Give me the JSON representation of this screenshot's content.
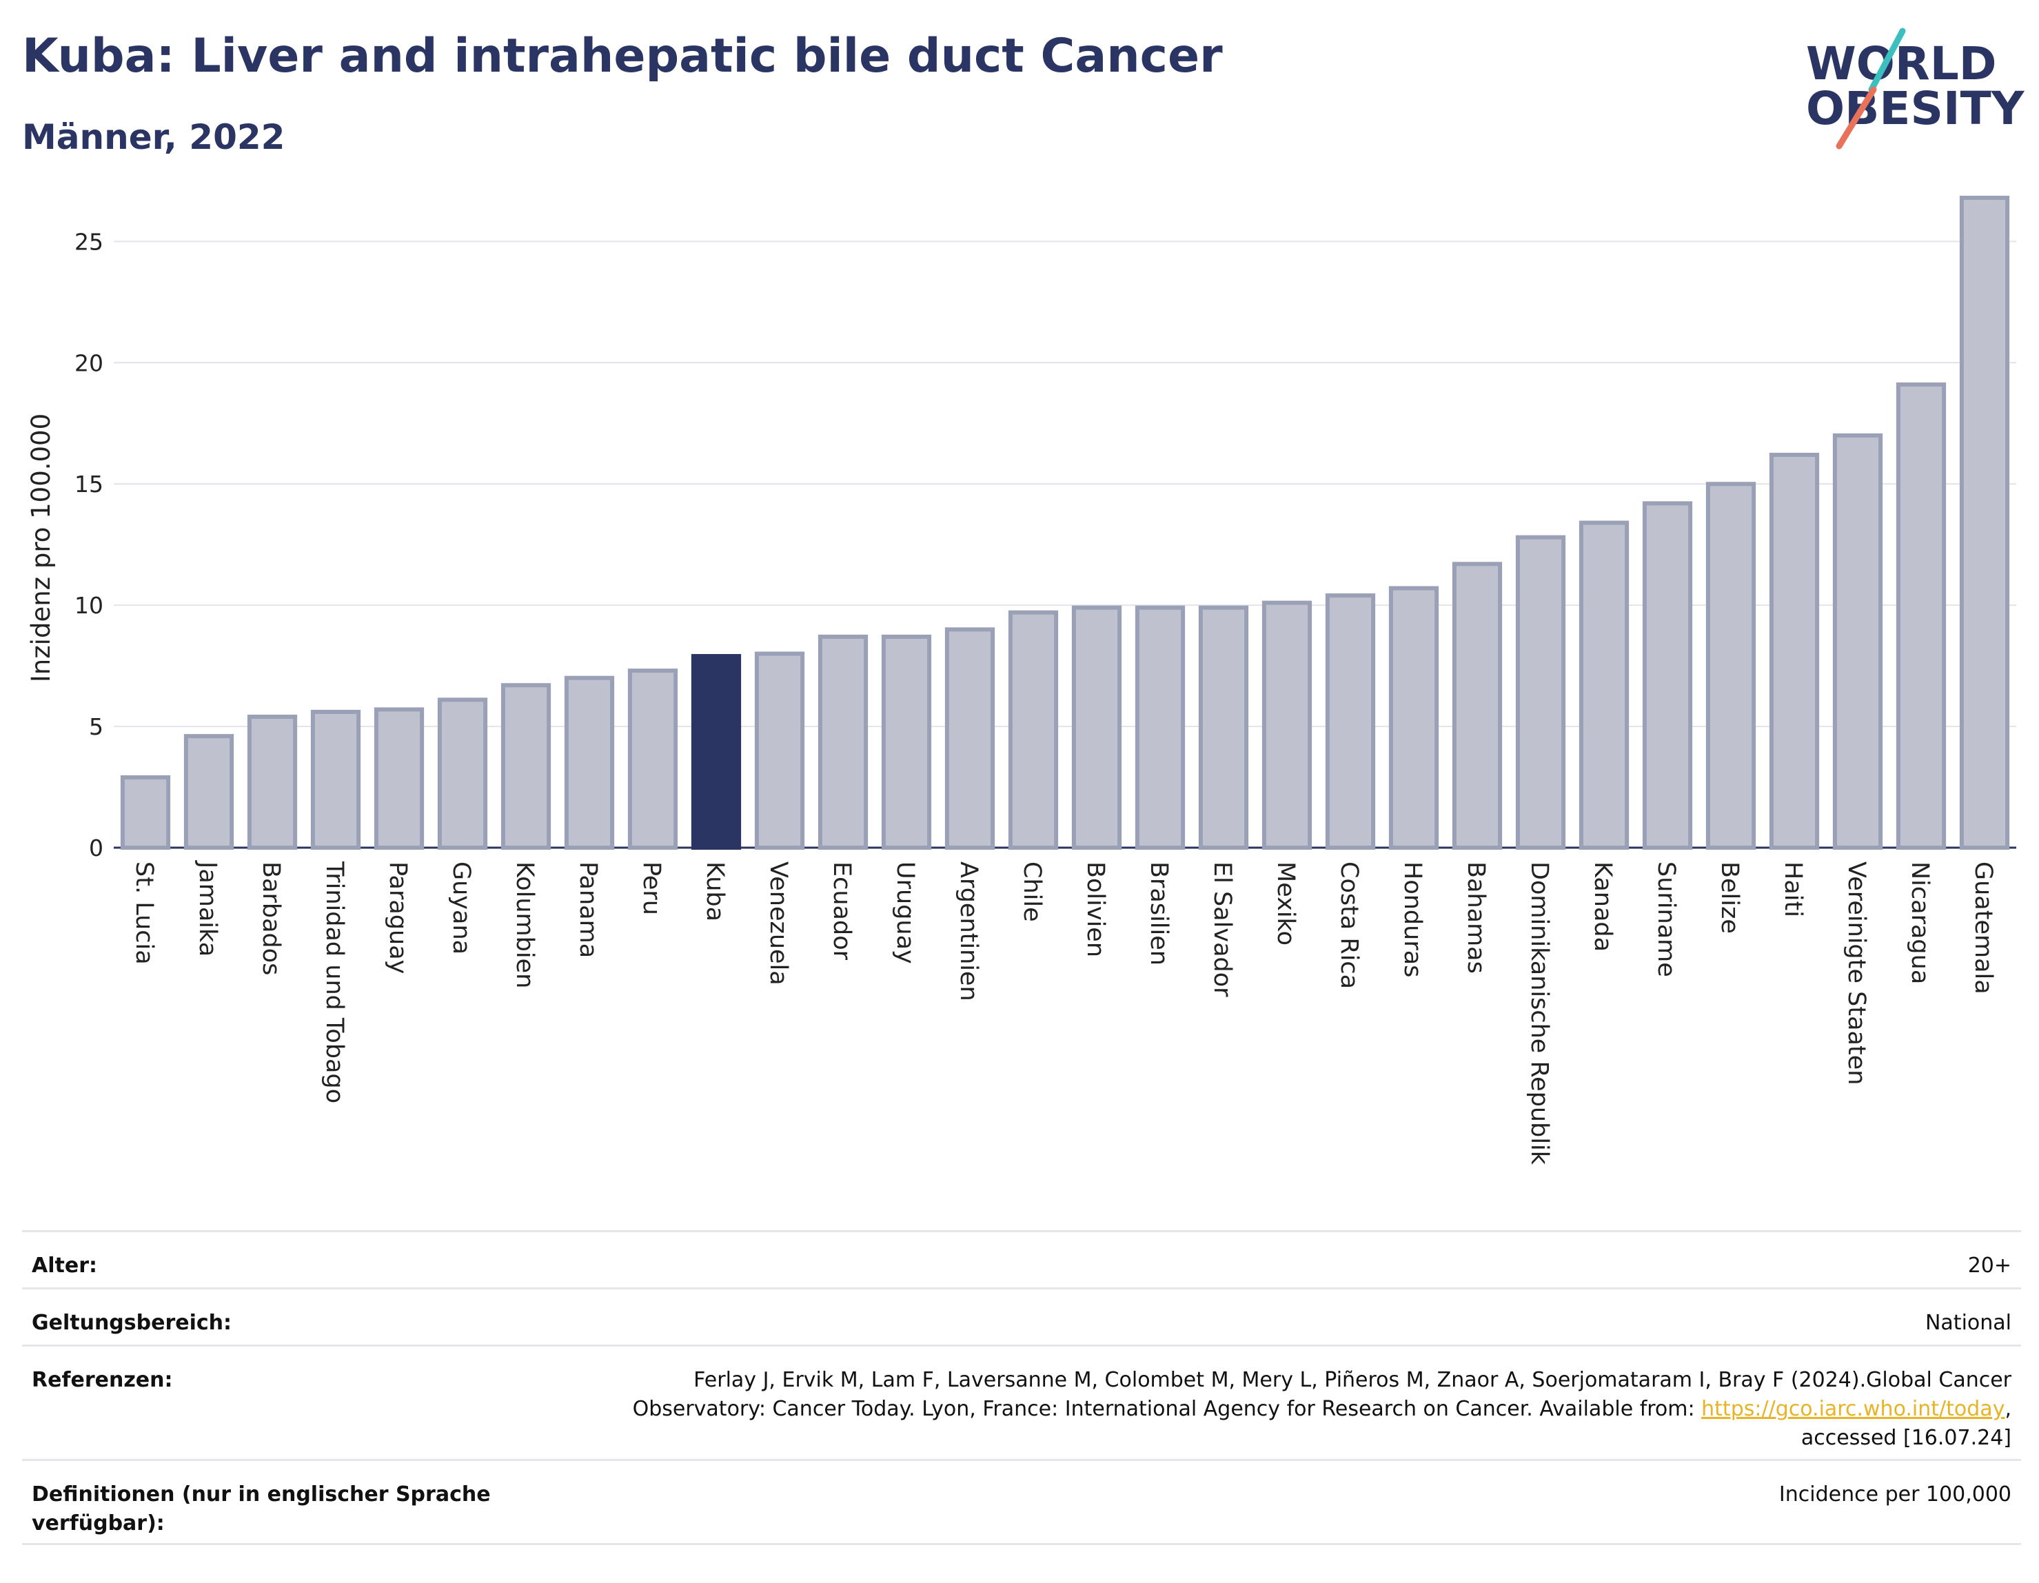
{
  "header": {
    "title": "Kuba: Liver and intrahepatic bile duct Cancer",
    "subtitle": "Männer, 2022"
  },
  "logo": {
    "line1": "WORLD",
    "line2": "OBESITY"
  },
  "colors": {
    "highlight": "#2b3563",
    "bar_fill": "#bfc2ce",
    "bar_stroke": "#9aa0b6",
    "grid": "#e3e4ea",
    "accent_teal": "#3bbfbf",
    "accent_coral": "#e8735a"
  },
  "chart_data": {
    "type": "bar",
    "categories": [
      "St. Lucia",
      "Jamaika",
      "Barbados",
      "Trinidad und Tobago",
      "Paraguay",
      "Guyana",
      "Kolumbien",
      "Panama",
      "Peru",
      "Kuba",
      "Venezuela",
      "Ecuador",
      "Uruguay",
      "Argentinien",
      "Chile",
      "Bolivien",
      "Brasilien",
      "El Salvador",
      "Mexiko",
      "Costa Rica",
      "Honduras",
      "Bahamas",
      "Dominikanische Republik",
      "Kanada",
      "Suriname",
      "Belize",
      "Haiti",
      "Vereinigte Staaten",
      "Nicaragua",
      "Guatemala"
    ],
    "values": [
      2.9,
      4.6,
      5.4,
      5.6,
      5.7,
      6.1,
      6.7,
      7.0,
      7.3,
      7.9,
      8.0,
      8.7,
      8.7,
      9.0,
      9.7,
      9.9,
      9.9,
      9.9,
      10.1,
      10.4,
      10.7,
      11.7,
      12.8,
      13.4,
      14.2,
      15.0,
      16.2,
      17.0,
      19.1,
      26.8
    ],
    "highlight": "Kuba",
    "ylabel": "Inzidenz pro 100.000",
    "yticks": [
      0,
      5,
      10,
      15,
      20,
      25
    ],
    "ylim": [
      0,
      27
    ],
    "grid": true,
    "legend": "none"
  },
  "info": {
    "rows": [
      {
        "label": "Alter:",
        "value": "20+"
      },
      {
        "label": "Geltungsbereich:",
        "value": "National"
      },
      {
        "label": "Referenzen:",
        "value_pre": "Ferlay J, Ervik M, Lam F, Laversanne M, Colombet M, Mery L, Piñeros M, Znaor A, Soerjomataram I, Bray F (2024).Global Cancer Observatory: Cancer Today. Lyon, France: International Agency for Research on Cancer. Available from: ",
        "link": "https://gco.iarc.who.int/today",
        "value_post": ", accessed [16.07.24]"
      },
      {
        "label": "Definitionen (nur in englischer Sprache verfügbar):",
        "value": "Incidence per 100,000"
      }
    ]
  }
}
